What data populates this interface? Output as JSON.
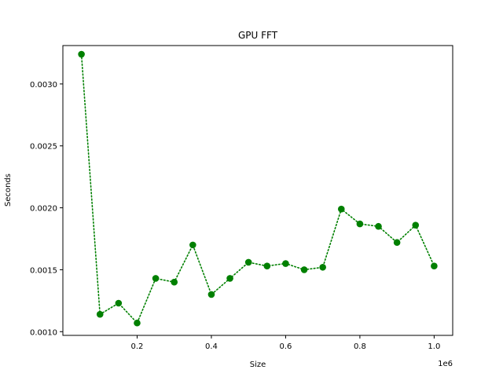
{
  "chart_data": {
    "type": "line",
    "title": "GPU FFT",
    "xlabel": "Size",
    "ylabel": "Seconds",
    "x_offset_label": "1e6",
    "xlim": [
      0,
      1050000
    ],
    "ylim": [
      0.00097,
      0.00331
    ],
    "xticks": [
      200000,
      400000,
      600000,
      800000,
      1000000
    ],
    "xtick_labels": [
      "0.2",
      "0.4",
      "0.6",
      "0.8",
      "1.0"
    ],
    "yticks": [
      0.001,
      0.0015,
      0.002,
      0.0025,
      0.003
    ],
    "ytick_labels": [
      "0.0010",
      "0.0015",
      "0.0020",
      "0.0025",
      "0.0030"
    ],
    "grid": false,
    "series": [
      {
        "color": "#008000",
        "line_style": "dotted",
        "marker": "circle",
        "x": [
          50000,
          100000,
          150000,
          200000,
          250000,
          300000,
          350000,
          400000,
          450000,
          500000,
          550000,
          600000,
          650000,
          700000,
          750000,
          800000,
          850000,
          900000,
          950000,
          1000000
        ],
        "y": [
          0.00324,
          0.00114,
          0.00123,
          0.00107,
          0.00143,
          0.0014,
          0.0017,
          0.0013,
          0.00143,
          0.00156,
          0.00153,
          0.00155,
          0.0015,
          0.00152,
          0.00199,
          0.00187,
          0.00185,
          0.00172,
          0.00186,
          0.00153
        ]
      }
    ]
  }
}
